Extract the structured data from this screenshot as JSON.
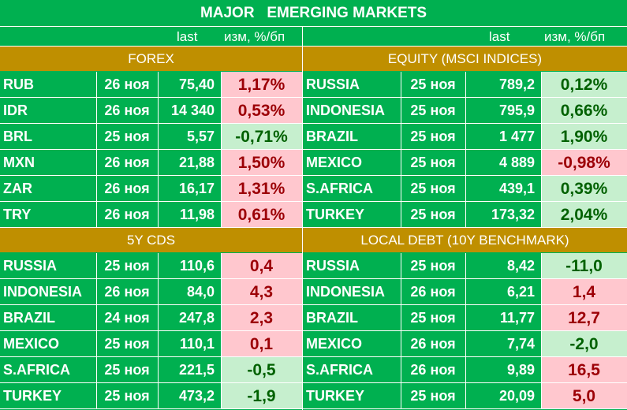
{
  "title": "MAJOR   EMERGING MARKETS",
  "headers": {
    "last": "last",
    "change": "изм, %/бп"
  },
  "colors": {
    "green": "#00b050",
    "gold": "#bf8f00",
    "pos_bg": "#ffc7ce",
    "pos_fg": "#9c0006",
    "neg_bg": "#c6efce",
    "neg_fg": "#006100"
  },
  "panels": [
    {
      "title": "FOREX",
      "rows": [
        {
          "name": "RUB",
          "date": "26 ноя",
          "last": "75,40",
          "change": "1,17%",
          "dir": "pos"
        },
        {
          "name": "IDR",
          "date": "26 ноя",
          "last": "14 340",
          "change": "0,53%",
          "dir": "pos"
        },
        {
          "name": "BRL",
          "date": "25 ноя",
          "last": "5,57",
          "change": "-0,71%",
          "dir": "neg"
        },
        {
          "name": "MXN",
          "date": "26 ноя",
          "last": "21,88",
          "change": "1,50%",
          "dir": "pos"
        },
        {
          "name": "ZAR",
          "date": "26 ноя",
          "last": "16,17",
          "change": "1,31%",
          "dir": "pos"
        },
        {
          "name": "TRY",
          "date": "26 ноя",
          "last": "11,98",
          "change": "0,61%",
          "dir": "pos"
        }
      ]
    },
    {
      "title": "EQUITY (MSCI INDICES)",
      "rows": [
        {
          "name": "RUSSIA",
          "date": "25 ноя",
          "last": "789,2",
          "change": "0,12%",
          "dir": "neg"
        },
        {
          "name": "INDONESIA",
          "date": "25 ноя",
          "last": "795,9",
          "change": "0,66%",
          "dir": "neg"
        },
        {
          "name": "BRAZIL",
          "date": "25 ноя",
          "last": "1 477",
          "change": "1,90%",
          "dir": "neg"
        },
        {
          "name": "MEXICO",
          "date": "25 ноя",
          "last": "4 889",
          "change": "-0,98%",
          "dir": "pos"
        },
        {
          "name": "S.AFRICA",
          "date": "25 ноя",
          "last": "439,1",
          "change": "0,39%",
          "dir": "neg"
        },
        {
          "name": "TURKEY",
          "date": "25 ноя",
          "last": "173,32",
          "change": "2,04%",
          "dir": "neg"
        }
      ]
    },
    {
      "title": "5Y CDS",
      "rows": [
        {
          "name": "RUSSIA",
          "date": "25 ноя",
          "last": "110,6",
          "change": "0,4",
          "dir": "pos"
        },
        {
          "name": "INDONESIA",
          "date": "26 ноя",
          "last": "84,0",
          "change": "4,3",
          "dir": "pos"
        },
        {
          "name": "BRAZIL",
          "date": "24 ноя",
          "last": "247,8",
          "change": "2,3",
          "dir": "pos"
        },
        {
          "name": "MEXICO",
          "date": "25 ноя",
          "last": "110,1",
          "change": "0,1",
          "dir": "pos"
        },
        {
          "name": "S.AFRICA",
          "date": "25 ноя",
          "last": "221,5",
          "change": "-0,5",
          "dir": "neg"
        },
        {
          "name": "TURKEY",
          "date": "25 ноя",
          "last": "473,2",
          "change": "-1,9",
          "dir": "neg"
        }
      ]
    },
    {
      "title": "LOCAL DEBT (10Y BENCHMARK)",
      "rows": [
        {
          "name": "RUSSIA",
          "date": "25 ноя",
          "last": "8,42",
          "change": "-11,0",
          "dir": "neg"
        },
        {
          "name": "INDONESIA",
          "date": "26 ноя",
          "last": "6,21",
          "change": "1,4",
          "dir": "pos"
        },
        {
          "name": "BRAZIL",
          "date": "25 ноя",
          "last": "11,77",
          "change": "12,7",
          "dir": "pos"
        },
        {
          "name": "MEXICO",
          "date": "26 ноя",
          "last": "7,74",
          "change": "-2,0",
          "dir": "neg"
        },
        {
          "name": "S.AFRICA",
          "date": "26 ноя",
          "last": "9,89",
          "change": "16,5",
          "dir": "pos"
        },
        {
          "name": "TURKEY",
          "date": "25 ноя",
          "last": "20,09",
          "change": "5,0",
          "dir": "pos"
        }
      ]
    }
  ]
}
